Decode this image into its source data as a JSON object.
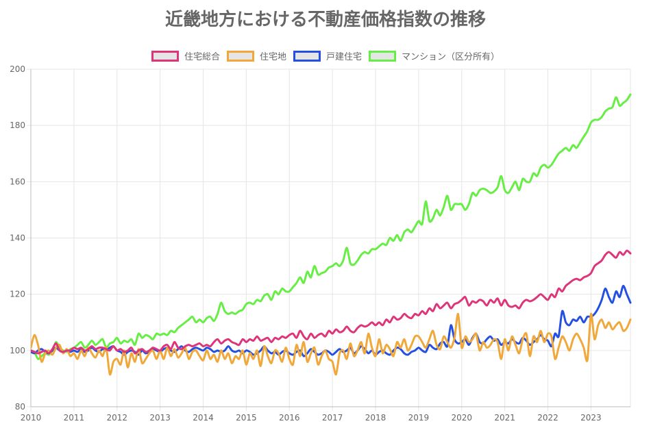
{
  "chart_data": {
    "type": "line",
    "title": "近畿地方における不動産価格指数の推移",
    "xlabel": "",
    "ylabel": "",
    "ylim": [
      80,
      200
    ],
    "yticks": [
      "80",
      "100",
      "120",
      "140",
      "160",
      "180",
      "200"
    ],
    "xticks": [
      "2010",
      "2011",
      "2012",
      "2013",
      "2014",
      "2015",
      "2016",
      "2017",
      "2018",
      "2019",
      "2020",
      "2021",
      "2022",
      "2023"
    ],
    "grid": true,
    "legend_position": "top",
    "x": [
      "2010-01",
      "2010-02",
      "2010-03",
      "2010-04",
      "2010-05",
      "2010-06",
      "2010-07",
      "2010-08",
      "2010-09",
      "2010-10",
      "2010-11",
      "2010-12",
      "2011-01",
      "2011-02",
      "2011-03",
      "2011-04",
      "2011-05",
      "2011-06",
      "2011-07",
      "2011-08",
      "2011-09",
      "2011-10",
      "2011-11",
      "2011-12",
      "2012-01",
      "2012-02",
      "2012-03",
      "2012-04",
      "2012-05",
      "2012-06",
      "2012-07",
      "2012-08",
      "2012-09",
      "2012-10",
      "2012-11",
      "2012-12",
      "2013-01",
      "2013-02",
      "2013-03",
      "2013-04",
      "2013-05",
      "2013-06",
      "2013-07",
      "2013-08",
      "2013-09",
      "2013-10",
      "2013-11",
      "2013-12",
      "2014-01",
      "2014-02",
      "2014-03",
      "2014-04",
      "2014-05",
      "2014-06",
      "2014-07",
      "2014-08",
      "2014-09",
      "2014-10",
      "2014-11",
      "2014-12",
      "2015-01",
      "2015-02",
      "2015-03",
      "2015-04",
      "2015-05",
      "2015-06",
      "2015-07",
      "2015-08",
      "2015-09",
      "2015-10",
      "2015-11",
      "2015-12",
      "2016-01",
      "2016-02",
      "2016-03",
      "2016-04",
      "2016-05",
      "2016-06",
      "2016-07",
      "2016-08",
      "2016-09",
      "2016-10",
      "2016-11",
      "2016-12",
      "2017-01",
      "2017-02",
      "2017-03",
      "2017-04",
      "2017-05",
      "2017-06",
      "2017-07",
      "2017-08",
      "2017-09",
      "2017-10",
      "2017-11",
      "2017-12",
      "2018-01",
      "2018-02",
      "2018-03",
      "2018-04",
      "2018-05",
      "2018-06",
      "2018-07",
      "2018-08",
      "2018-09",
      "2018-10",
      "2018-11",
      "2018-12",
      "2019-01",
      "2019-02",
      "2019-03",
      "2019-04",
      "2019-05",
      "2019-06",
      "2019-07",
      "2019-08",
      "2019-09",
      "2019-10",
      "2019-11",
      "2019-12",
      "2020-01",
      "2020-02",
      "2020-03",
      "2020-04",
      "2020-05",
      "2020-06",
      "2020-07",
      "2020-08",
      "2020-09",
      "2020-10",
      "2020-11",
      "2020-12",
      "2021-01",
      "2021-02",
      "2021-03",
      "2021-04",
      "2021-05",
      "2021-06",
      "2021-07",
      "2021-08",
      "2021-09",
      "2021-10",
      "2021-11",
      "2021-12",
      "2022-01",
      "2022-02",
      "2022-03",
      "2022-04",
      "2022-05",
      "2022-06",
      "2022-07",
      "2022-08",
      "2022-09",
      "2022-10",
      "2022-11",
      "2022-12",
      "2023-01",
      "2023-02",
      "2023-03",
      "2023-04",
      "2023-05",
      "2023-06",
      "2023-07",
      "2023-08",
      "2023-09",
      "2023-10",
      "2023-11",
      "2023-12"
    ],
    "series": [
      {
        "name": "住宅総合",
        "color": "#de3479",
        "values": [
          100,
          99.5,
          99,
          99.5,
          100,
          99,
          100.5,
          102.5,
          100,
          99.5,
          100,
          100,
          101,
          100.5,
          101,
          100,
          100.5,
          101.5,
          100.5,
          101,
          101,
          100.5,
          100,
          101.5,
          100,
          100.5,
          99.5,
          100,
          101,
          99,
          100,
          100.5,
          99.5,
          100,
          101,
          100.5,
          100,
          101.5,
          102,
          100.5,
          103,
          101,
          100.5,
          101.5,
          102,
          101.5,
          102,
          102.5,
          101.5,
          102,
          101.5,
          103,
          104,
          102.5,
          103.5,
          104,
          103,
          102.5,
          102,
          104,
          103,
          104,
          103.5,
          105,
          103.5,
          104,
          104.5,
          103,
          104.5,
          104,
          105,
          104.5,
          105.5,
          106,
          104.5,
          107,
          105,
          104,
          106,
          104.5,
          105.5,
          106,
          105,
          107,
          106,
          107.5,
          106.5,
          107,
          108.5,
          107,
          106.5,
          108,
          109,
          108.5,
          109,
          110,
          109,
          110,
          109,
          111,
          110,
          112,
          111,
          111.5,
          113,
          112,
          111.5,
          113,
          112.5,
          114,
          113,
          115,
          114,
          116.5,
          115,
          116,
          117,
          115,
          116.5,
          117,
          118,
          119,
          116,
          117.5,
          117,
          118,
          117.5,
          116,
          118,
          117,
          118.5,
          116,
          118,
          116,
          115.5,
          116,
          115,
          117,
          118,
          117.5,
          118,
          119,
          120,
          119,
          118,
          120,
          119,
          122,
          121,
          123,
          124,
          125,
          125.5,
          125,
          126,
          126.5,
          127.5,
          130,
          131,
          132,
          134,
          135,
          134,
          133,
          135,
          134,
          135.5,
          134.5
        ]
      },
      {
        "name": "住宅地",
        "color": "#f0a83a",
        "values": [
          101,
          105.5,
          102,
          96,
          99,
          100,
          98.5,
          101,
          102,
          99,
          100.5,
          98,
          99,
          97,
          100,
          98,
          101,
          99,
          97.5,
          100,
          98,
          101,
          91.5,
          96,
          97,
          95,
          100,
          94,
          99,
          96,
          100.5,
          95.5,
          97,
          99,
          100,
          97,
          100,
          97,
          101,
          98,
          100.5,
          97.5,
          99,
          101,
          97,
          99.5,
          100,
          98,
          96.5,
          100,
          97,
          98.5,
          96,
          100,
          97,
          99,
          95.5,
          98,
          97,
          100,
          95,
          99,
          97,
          100,
          94.5,
          101.5,
          98,
          95.5,
          100,
          99,
          96,
          101,
          97,
          95,
          102,
          98,
          103,
          96,
          99,
          101,
          95,
          98,
          100,
          97,
          96,
          91.5,
          99,
          100,
          97,
          102.5,
          98,
          100,
          103,
          99,
          106,
          101,
          98,
          104,
          99,
          102,
          100.5,
          98,
          103,
          101,
          104,
          100,
          102,
          105,
          105,
          103,
          101,
          104,
          107,
          102,
          100.5,
          105,
          103,
          101,
          104.5,
          113,
          101,
          105,
          103,
          104,
          106,
          100,
          103,
          101,
          102,
          104,
          103,
          97,
          104,
          100,
          105,
          102,
          99,
          104,
          106,
          98,
          105,
          103,
          107,
          103,
          106,
          105,
          97,
          101,
          105,
          103,
          100,
          104,
          106,
          104,
          101,
          96.5,
          113,
          104,
          109,
          111,
          108,
          110,
          107.5,
          109,
          110,
          107,
          108,
          111
        ]
      },
      {
        "name": "戸建住宅",
        "color": "#2350e0",
        "values": [
          99.5,
          99,
          100,
          100.5,
          99.5,
          99,
          100,
          101,
          100,
          99.5,
          100,
          99.5,
          100,
          99.5,
          100.5,
          99.5,
          100,
          101,
          100,
          99.5,
          100.5,
          100,
          101,
          101.5,
          100,
          99.5,
          98.5,
          99.5,
          100,
          99.5,
          98.5,
          100,
          99,
          99.5,
          100.5,
          100,
          99.5,
          100.5,
          101,
          100,
          99.5,
          100.5,
          101.5,
          100,
          99.5,
          100.5,
          101,
          100.5,
          100,
          101,
          100.5,
          99.5,
          100,
          99.5,
          100,
          101.5,
          100,
          99.5,
          100,
          99,
          100,
          99.5,
          98.5,
          99,
          100,
          101.5,
          100,
          99,
          99.5,
          98.5,
          99.5,
          100,
          99,
          98.5,
          99.5,
          100,
          98,
          99,
          100.5,
          99.5,
          98.5,
          99,
          100,
          99.5,
          98.5,
          99.5,
          100.5,
          99.5,
          100,
          101,
          99,
          100,
          101.5,
          100.5,
          99,
          100,
          98.5,
          99.5,
          100,
          99,
          98.5,
          100,
          101,
          100.5,
          99,
          98.5,
          99.5,
          100,
          101,
          100,
          99.5,
          102,
          101,
          100.5,
          102.5,
          103,
          101.5,
          109,
          104,
          102.5,
          103,
          104,
          102,
          104.5,
          106,
          103,
          102.5,
          104,
          105,
          103.5,
          104,
          102,
          103,
          102.5,
          104,
          103,
          102.5,
          104.5,
          103.5,
          102,
          103,
          104,
          105.5,
          104,
          103.5,
          101.5,
          106,
          105,
          114,
          110,
          109,
          111,
          110.5,
          112,
          110,
          112,
          112,
          113,
          115,
          118,
          122,
          119,
          117,
          121,
          119,
          123,
          120,
          117
        ]
      },
      {
        "name": "マンション（区分所有）",
        "color": "#66ee44",
        "values": [
          100,
          99.5,
          97,
          98,
          99,
          98.5,
          100,
          103,
          101,
          100,
          99.5,
          100.5,
          101,
          102,
          103,
          101,
          102,
          103.5,
          102,
          103,
          104,
          101,
          102.5,
          103,
          104.5,
          102.5,
          103.5,
          103,
          104,
          102,
          106,
          104.5,
          105.5,
          105,
          104,
          106,
          105.5,
          106,
          105.5,
          107,
          106.5,
          108,
          109,
          110,
          111,
          112,
          110,
          111,
          110,
          111.5,
          112,
          110.5,
          113,
          117,
          114,
          113,
          113.5,
          113,
          114,
          114.5,
          116.5,
          117,
          116.5,
          118,
          117.5,
          119.5,
          120,
          118,
          121,
          120,
          122,
          121,
          121,
          122.5,
          124,
          126,
          124,
          128,
          126,
          130,
          127,
          127.5,
          128,
          129.5,
          130,
          131,
          130,
          132,
          136.5,
          131,
          130.5,
          132,
          134,
          135,
          134.5,
          136,
          136,
          137,
          138,
          137.5,
          140,
          139,
          141,
          139,
          142,
          143,
          142,
          144,
          146,
          145,
          153,
          146,
          147,
          150,
          148,
          151,
          155,
          150,
          152,
          152,
          152,
          150,
          152,
          156,
          155,
          157,
          157.5,
          157,
          156,
          156.5,
          158,
          162,
          157,
          156,
          158,
          160,
          157,
          161,
          160,
          160,
          163,
          162,
          165,
          166,
          165,
          166,
          168,
          170,
          171,
          172,
          171,
          173,
          172,
          174,
          176,
          178,
          181,
          182,
          182,
          183,
          185,
          186,
          186.5,
          190,
          187,
          188,
          189,
          191
        ]
      }
    ]
  }
}
